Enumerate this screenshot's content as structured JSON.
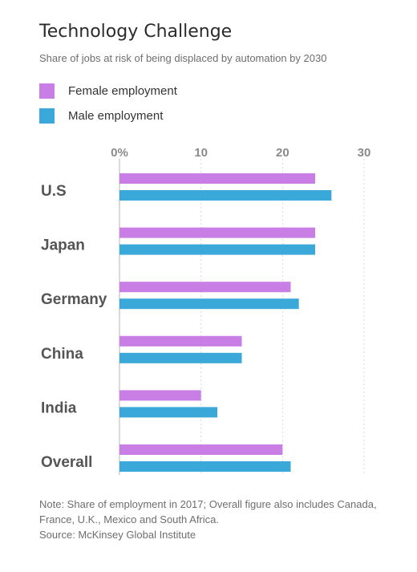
{
  "header": {
    "title": "Technology Challenge",
    "subtitle": "Share of jobs at risk of being displaced by automation by 2030"
  },
  "footer": {
    "note": "Note: Share of employment in 2017; Overall figure also includes Canada, France, U.K., Mexico and South Africa.",
    "source": "Source: McKinsey Global Institute"
  },
  "colors": {
    "female": "#c97ee6",
    "male": "#3aa8d9",
    "grid": "#d9d9d9",
    "axis": "#8a8a8a"
  },
  "chart_data": {
    "type": "bar",
    "orientation": "horizontal",
    "title": "Technology Challenge",
    "subtitle": "Share of jobs at risk of being displaced by automation by 2030",
    "categories": [
      "U.S",
      "Japan",
      "Germany",
      "China",
      "India",
      "Overall"
    ],
    "series": [
      {
        "name": "Female employment",
        "color": "#c97ee6",
        "values": [
          24,
          24,
          21,
          15,
          10,
          20
        ]
      },
      {
        "name": "Male employment",
        "color": "#3aa8d9",
        "values": [
          26,
          24,
          22,
          15,
          12,
          21
        ]
      }
    ],
    "xlim": [
      0,
      30
    ],
    "ticks": [
      0,
      10,
      20,
      30
    ],
    "tick_labels": [
      "0%",
      "10",
      "20",
      "30"
    ],
    "grid": true,
    "legend": "top-left"
  }
}
